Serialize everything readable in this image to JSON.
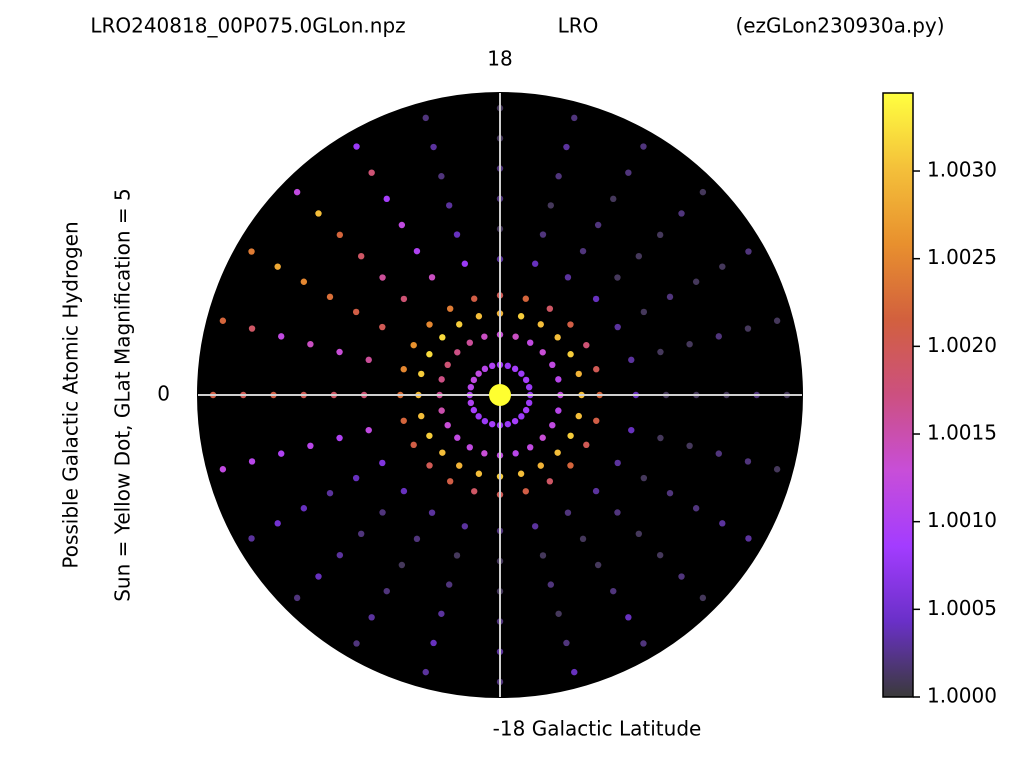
{
  "chart_data": {
    "type": "polar_scatter",
    "title_left": "LRO240818_00P075.0GLon.npz",
    "title_center": "LRO",
    "title_right": "(ezGLon230930a.py)",
    "ylabel": [
      "Possible Galactic Atomic Hydrogen",
      "Sun = Yellow Dot, GLat Magnification = 5"
    ],
    "ylim": [
      -18,
      18
    ],
    "yticks": [
      18,
      0,
      {
        "value": -18,
        "label": "-18 Galactic Latitude"
      }
    ],
    "sun_color": "#ffff30",
    "background": "#000000",
    "colormap": [
      "#3a3a3a",
      "#6a30c8",
      "#a33cff",
      "#c84ed8",
      "#cc5080",
      "#d2603e",
      "#e8902e",
      "#f4c03a",
      "#ffff40"
    ],
    "clim": [
      1.0,
      1.003445
    ],
    "cticks": [
      {
        "value": 1.0,
        "label": "1.0000"
      },
      {
        "value": 1.0005,
        "label": "1.0005"
      },
      {
        "value": 1.001,
        "label": "1.0010"
      },
      {
        "value": 1.0015,
        "label": "1.0015"
      },
      {
        "value": 1.002,
        "label": "1.0020"
      },
      {
        "value": 1.0025,
        "label": "1.0025"
      },
      {
        "value": 1.003,
        "label": "1.0030"
      }
    ],
    "r": [
      0.1,
      0.2,
      0.27,
      0.33,
      0.45,
      0.55,
      0.65,
      0.75,
      0.85,
      0.95
    ],
    "series": [
      {
        "angle": 0,
        "values": [
          1.0008,
          1.0012,
          1.003,
          1.0022,
          1.0004,
          1.0001,
          1.0001,
          1.0001,
          1.0002,
          1.0001
        ]
      },
      {
        "angle": 15,
        "values": [
          1.0008,
          1.0011,
          1.0029,
          1.002,
          1.0003,
          1.0001,
          1.0001,
          1.0002,
          1.0001,
          1.0001
        ]
      },
      {
        "angle": 30,
        "values": [
          1.0009,
          1.0012,
          1.0031,
          1.0018,
          1.0003,
          1.0001,
          1.0002,
          1.0001,
          1.0001,
          1.0002
        ]
      },
      {
        "angle": 45,
        "values": [
          1.0008,
          1.0013,
          1.003,
          1.0021,
          1.0004,
          1.0001,
          1.0001,
          1.0001,
          1.0002,
          1.0001
        ]
      },
      {
        "angle": 60,
        "values": [
          1.0009,
          1.0012,
          1.003,
          1.0019,
          1.0003,
          1.0002,
          1.0002,
          1.0001,
          1.0002,
          1.0002
        ]
      },
      {
        "angle": 75,
        "values": [
          1.0008,
          1.0014,
          1.0031,
          1.0022,
          1.0004,
          1.0002,
          1.0001,
          1.0002,
          1.0003,
          1.0002
        ]
      },
      {
        "angle": 90,
        "values": [
          1.0009,
          1.0013,
          1.0029,
          1.002,
          1.0003,
          1.0001,
          1.0002,
          1.0002,
          1.0001,
          1.0001
        ]
      },
      {
        "angle": 105,
        "values": [
          1.001,
          1.0014,
          1.003,
          1.0021,
          1.0008,
          1.0004,
          1.0003,
          1.0002,
          1.0003,
          1.0002
        ]
      },
      {
        "angle": 120,
        "values": [
          1.0011,
          1.0016,
          1.0031,
          1.0024,
          1.0014,
          1.001,
          1.0012,
          1.0009,
          1.0018,
          1.0008
        ]
      },
      {
        "angle": 135,
        "values": [
          1.0012,
          1.0017,
          1.0032,
          1.0025,
          1.0018,
          1.0016,
          1.0019,
          1.0022,
          1.003,
          1.0012
        ]
      },
      {
        "angle": 150,
        "values": [
          1.0012,
          1.0018,
          1.0032,
          1.0026,
          1.002,
          1.0021,
          1.0023,
          1.0025,
          1.0028,
          1.0024
        ]
      },
      {
        "angle": 165,
        "values": [
          1.0011,
          1.0017,
          1.0031,
          1.0025,
          1.0016,
          1.0013,
          1.0014,
          1.0012,
          1.0019,
          1.0022
        ]
      },
      {
        "angle": 180,
        "values": [
          1.001,
          1.0016,
          1.003,
          1.0023,
          1.0018,
          1.0019,
          1.002,
          1.0021,
          1.002,
          1.0021
        ]
      },
      {
        "angle": 195,
        "values": [
          1.001,
          1.0015,
          1.003,
          1.0022,
          1.0012,
          1.001,
          1.0011,
          1.001,
          1.0011,
          1.0012
        ]
      },
      {
        "angle": 210,
        "values": [
          1.0009,
          1.0013,
          1.0031,
          1.0021,
          1.0006,
          1.0004,
          1.0003,
          1.0004,
          1.0005,
          1.0003
        ]
      },
      {
        "angle": 225,
        "values": [
          1.0008,
          1.0012,
          1.003,
          1.002,
          1.0004,
          1.0002,
          1.0002,
          1.0003,
          1.0004,
          1.0002
        ]
      },
      {
        "angle": 240,
        "values": [
          1.0008,
          1.0012,
          1.0029,
          1.0021,
          1.0003,
          1.0002,
          1.0001,
          1.0002,
          1.0003,
          1.0002
        ]
      },
      {
        "angle": 255,
        "values": [
          1.0009,
          1.0013,
          1.003,
          1.0019,
          1.0003,
          1.0001,
          1.0002,
          1.0003,
          1.0004,
          1.0003
        ]
      },
      {
        "angle": 270,
        "values": [
          1.0008,
          1.0012,
          1.0031,
          1.002,
          1.0002,
          1.0001,
          1.0001,
          1.0002,
          1.0003,
          1.0002
        ]
      },
      {
        "angle": 285,
        "values": [
          1.0008,
          1.0011,
          1.003,
          1.0021,
          1.0003,
          1.0001,
          1.0002,
          1.0001,
          1.0002,
          1.0004
        ]
      },
      {
        "angle": 300,
        "values": [
          1.0009,
          1.0012,
          1.0029,
          1.0019,
          1.0002,
          1.0001,
          1.0001,
          1.0002,
          1.0004,
          1.0002
        ]
      },
      {
        "angle": 315,
        "values": [
          1.0008,
          1.0013,
          1.003,
          1.0022,
          1.0003,
          1.0002,
          1.0001,
          1.0001,
          1.0002,
          1.0001
        ]
      },
      {
        "angle": 330,
        "values": [
          1.0009,
          1.0012,
          1.0031,
          1.002,
          1.0003,
          1.0001,
          1.0002,
          1.0002,
          1.0003,
          1.0003
        ]
      },
      {
        "angle": 345,
        "values": [
          1.0008,
          1.0011,
          1.003,
          1.0021,
          1.0004,
          1.0001,
          1.0001,
          1.0002,
          1.0002,
          1.0001
        ]
      }
    ]
  }
}
